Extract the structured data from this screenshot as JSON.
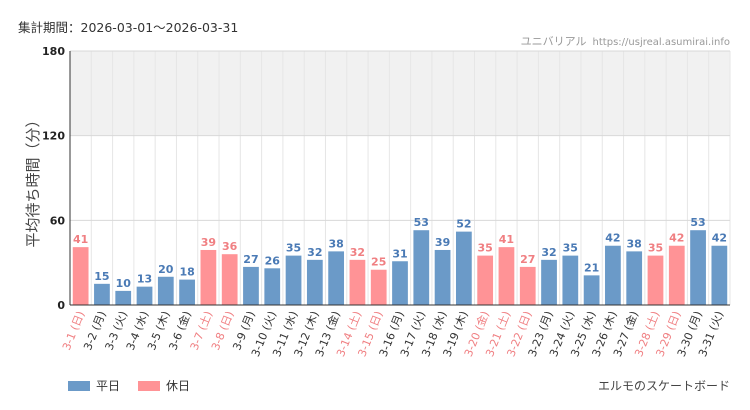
{
  "header": {
    "period_label": "集計期間：2026-03-01〜2026-03-31",
    "site_name": "ユニバリアル",
    "site_url": "https://usjreal.asumirai.info"
  },
  "footer": {
    "attraction": "エルモのスケートボード"
  },
  "colors": {
    "weekday": "#6b9ac8",
    "holiday": "#ff9396",
    "weekday_text": "#4a7ab5",
    "holiday_text": "#f07f82"
  },
  "chart_data": {
    "type": "bar",
    "title": "",
    "xlabel": "",
    "ylabel": "平均待ち時間（分）",
    "ylim": [
      0,
      180
    ],
    "yticks": [
      0,
      60,
      120,
      180
    ],
    "shaded_band": [
      120,
      180
    ],
    "legend": [
      {
        "key": "weekday",
        "label": "平日"
      },
      {
        "key": "holiday",
        "label": "休日"
      }
    ],
    "categories": [
      "3-1 (日)",
      "3-2 (月)",
      "3-3 (火)",
      "3-4 (水)",
      "3-5 (木)",
      "3-6 (金)",
      "3-7 (土)",
      "3-8 (日)",
      "3-9 (月)",
      "3-10 (火)",
      "3-11 (水)",
      "3-12 (木)",
      "3-13 (金)",
      "3-14 (土)",
      "3-15 (日)",
      "3-16 (月)",
      "3-17 (火)",
      "3-18 (水)",
      "3-19 (木)",
      "3-20 (金)",
      "3-21 (土)",
      "3-22 (日)",
      "3-23 (月)",
      "3-24 (火)",
      "3-25 (水)",
      "3-26 (木)",
      "3-27 (金)",
      "3-28 (土)",
      "3-29 (日)",
      "3-30 (月)",
      "3-31 (火)"
    ],
    "values": [
      41,
      15,
      10,
      13,
      20,
      18,
      39,
      36,
      27,
      26,
      35,
      32,
      38,
      32,
      25,
      31,
      53,
      39,
      52,
      35,
      41,
      27,
      32,
      35,
      21,
      42,
      38,
      35,
      42,
      53,
      42
    ],
    "day_type": [
      "holiday",
      "weekday",
      "weekday",
      "weekday",
      "weekday",
      "weekday",
      "holiday",
      "holiday",
      "weekday",
      "weekday",
      "weekday",
      "weekday",
      "weekday",
      "holiday",
      "holiday",
      "weekday",
      "weekday",
      "weekday",
      "weekday",
      "holiday",
      "holiday",
      "holiday",
      "weekday",
      "weekday",
      "weekday",
      "weekday",
      "weekday",
      "holiday",
      "holiday",
      "weekday",
      "weekday"
    ]
  }
}
